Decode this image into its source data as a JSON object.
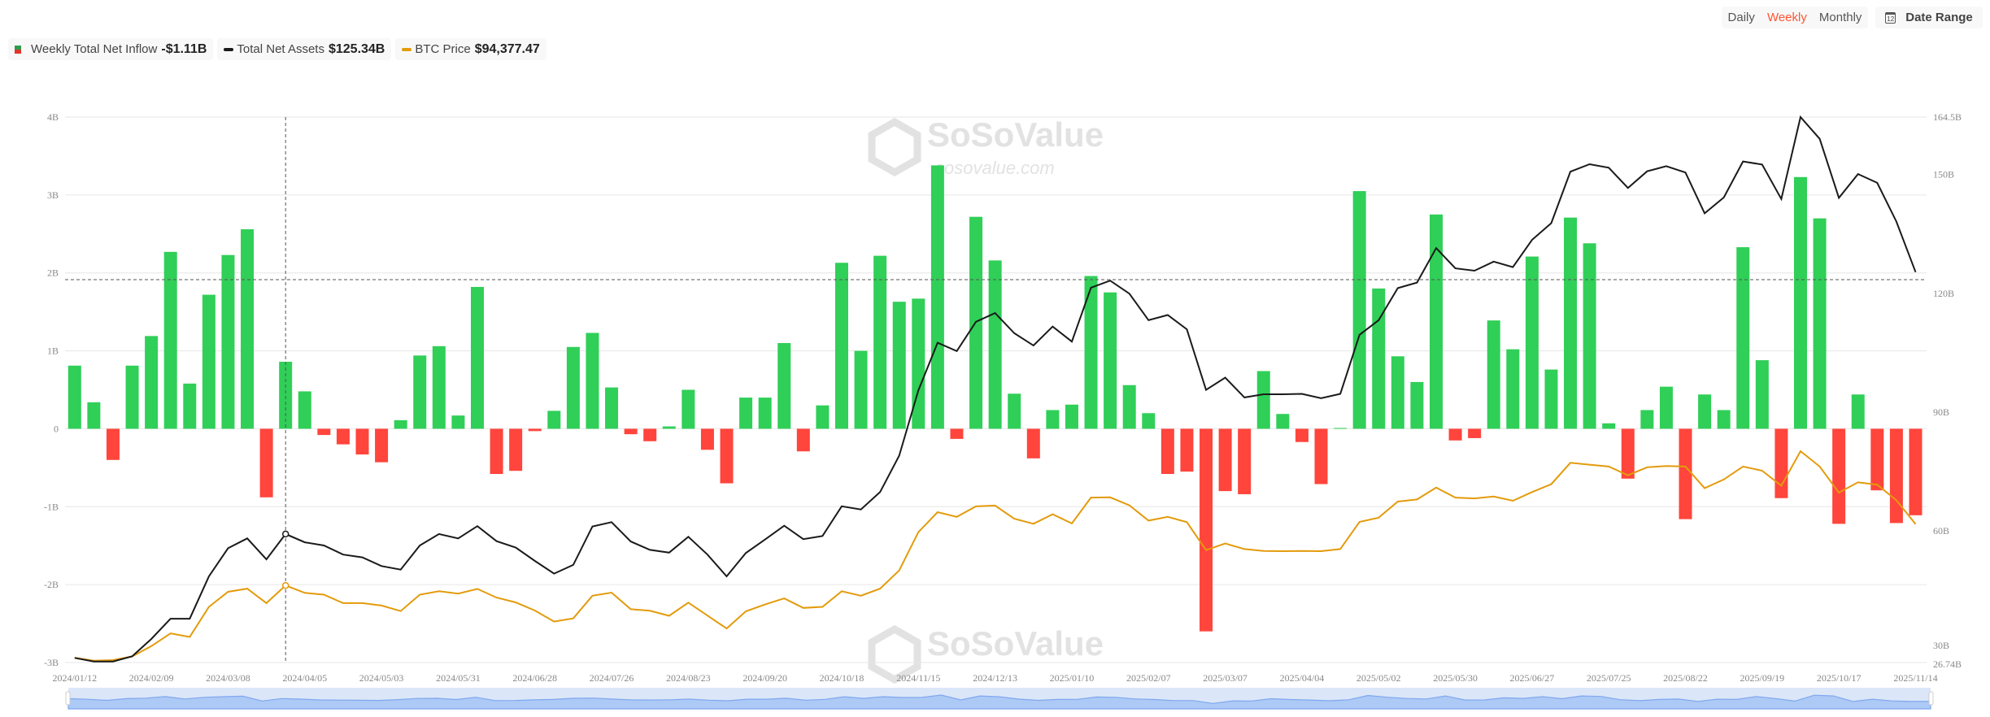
{
  "legend": {
    "inflow_label": "Weekly Total Net Inflow",
    "inflow_value": "-$1.11B",
    "assets_label": "Total Net Assets",
    "assets_value": "$125.34B",
    "btc_label": "BTC Price",
    "btc_value": "$94,377.47"
  },
  "controls": {
    "daily": "Daily",
    "weekly": "Weekly",
    "monthly": "Monthly",
    "active": "weekly",
    "date_range": "Date Range",
    "calendar_day": "12"
  },
  "watermark": {
    "brand": "SoSoValue",
    "url": "sosovalue.com"
  },
  "colors": {
    "inflow_pos": "#30cf58",
    "inflow_neg": "#ff453c",
    "assets": "#1a1a1a",
    "btc": "#e39b0c",
    "accent": "#ff5533",
    "navigator": "#adc9f5"
  },
  "chart_data": {
    "type": "bar+line",
    "start_date": "2024/01/12",
    "interval_days": 7,
    "x_tick_labels": [
      "2024/01/12",
      "2024/02/09",
      "2024/03/08",
      "2024/04/05",
      "2024/05/03",
      "2024/05/31",
      "2024/06/28",
      "2024/07/26",
      "2024/08/23",
      "2024/09/20",
      "2024/10/18",
      "2024/11/15",
      "2024/12/13",
      "2025/01/10",
      "2025/02/07",
      "2025/03/07",
      "2025/04/04",
      "2025/05/02",
      "2025/05/30",
      "2025/06/27",
      "2025/07/25",
      "2025/08/22",
      "2025/09/19",
      "2025/10/17",
      "2025/11/14"
    ],
    "left_axis": {
      "unit": "B",
      "ylim": [
        -3,
        4
      ],
      "ticks": [
        "4B",
        "3B",
        "2B",
        "1B",
        "0",
        "-1B",
        "-2B",
        "-3B"
      ],
      "tick_values": [
        4,
        3,
        2,
        1,
        0,
        -1,
        -2,
        -3
      ]
    },
    "right_axis": {
      "ylim": [
        26.74,
        164.5
      ],
      "ticks": [
        "164.5B",
        "150B",
        "120B",
        "90B",
        "60B",
        "30B",
        "26.74B"
      ],
      "tick_values": [
        164.5,
        150,
        120,
        90,
        60,
        30,
        26.74
      ]
    },
    "btc_axis_hidden": {
      "ylim": [
        41880,
        248680
      ]
    },
    "hover_index": 11,
    "series": [
      {
        "name": "Weekly Total Net Inflow",
        "type": "bar",
        "axis": "left",
        "values": [
          0.81,
          0.34,
          -0.4,
          0.81,
          1.19,
          2.27,
          0.58,
          1.72,
          2.23,
          2.56,
          -0.88,
          0.86,
          0.48,
          -0.08,
          -0.2,
          -0.33,
          -0.43,
          0.11,
          0.94,
          1.06,
          0.17,
          1.82,
          -0.58,
          -0.54,
          -0.03,
          0.23,
          1.05,
          1.23,
          0.53,
          -0.07,
          -0.16,
          0.03,
          0.5,
          -0.27,
          -0.7,
          0.4,
          0.4,
          1.1,
          -0.29,
          0.3,
          2.13,
          1.0,
          2.22,
          1.63,
          1.67,
          3.38,
          -0.13,
          2.72,
          2.16,
          0.45,
          -0.38,
          0.24,
          0.31,
          1.96,
          1.75,
          0.56,
          0.2,
          -0.58,
          -0.55,
          -2.6,
          -0.8,
          -0.84,
          0.74,
          0.19,
          -0.17,
          -0.71,
          0.01,
          3.05,
          1.8,
          0.93,
          0.6,
          2.75,
          -0.15,
          -0.12,
          1.39,
          1.02,
          2.21,
          0.76,
          2.71,
          2.38,
          0.07,
          -0.64,
          0.24,
          0.54,
          -1.16,
          0.44,
          0.24,
          2.33,
          0.88,
          -0.89,
          3.23,
          2.7,
          -1.22,
          0.44,
          -0.79,
          -1.21,
          -1.11
        ]
      },
      {
        "name": "Total Net Assets",
        "type": "line",
        "axis": "right",
        "values": [
          27.9,
          27.0,
          27.0,
          28.3,
          32.7,
          37.8,
          37.8,
          48.5,
          55.6,
          58.1,
          52.8,
          59.2,
          57.1,
          56.3,
          54.0,
          53.3,
          51.1,
          50.2,
          56.3,
          59.2,
          58.1,
          61.2,
          57.4,
          55.8,
          52.4,
          49.2,
          51.4,
          61.1,
          62.2,
          57.3,
          55.2,
          54.5,
          58.5,
          54.0,
          48.5,
          54.4,
          57.8,
          61.3,
          57.9,
          58.7,
          66.2,
          65.4,
          69.8,
          79.0,
          95.5,
          107.5,
          105.4,
          112.8,
          115.0,
          109.9,
          106.8,
          111.6,
          107.8,
          121.4,
          123.2,
          119.9,
          113.2,
          114.5,
          110.9,
          95.6,
          98.7,
          93.7,
          94.5,
          94.5,
          94.6,
          93.5,
          94.6,
          109.5,
          113.2,
          121.3,
          122.7,
          131.4,
          126.3,
          125.7,
          128.0,
          126.6,
          133.5,
          137.7,
          150.7,
          152.6,
          151.7,
          146.6,
          150.8,
          152.1,
          150.5,
          140.2,
          144.2,
          153.3,
          152.5,
          143.8,
          164.5,
          159.0,
          144.1,
          150.1,
          147.9,
          138.1,
          125.34
        ]
      },
      {
        "name": "BTC Price",
        "type": "line",
        "axis": "hidden",
        "values": [
          43700,
          42600,
          42800,
          44200,
          48100,
          52900,
          51600,
          63000,
          68700,
          69900,
          64400,
          71100,
          68300,
          67600,
          64400,
          64400,
          63500,
          61400,
          67600,
          68900,
          68000,
          69800,
          66500,
          64700,
          61600,
          57400,
          58600,
          67200,
          68400,
          62100,
          61500,
          59600,
          64600,
          59700,
          54800,
          61300,
          63900,
          66200,
          62600,
          63000,
          68900,
          67200,
          69900,
          76800,
          91300,
          98900,
          97100,
          101100,
          101400,
          96400,
          94500,
          98100,
          94600,
          104400,
          104500,
          101500,
          95700,
          97100,
          95100,
          84500,
          87000,
          84900,
          84200,
          84100,
          84200,
          84100,
          84900,
          95200,
          96800,
          102900,
          103700,
          108200,
          104400,
          104100,
          104800,
          103200,
          106500,
          109500,
          117600,
          116900,
          116200,
          112900,
          115900,
          116400,
          116200,
          108000,
          111300,
          116200,
          114600,
          108900,
          122000,
          116200,
          106300,
          110200,
          109300,
          103400,
          94377.47
        ]
      }
    ]
  }
}
